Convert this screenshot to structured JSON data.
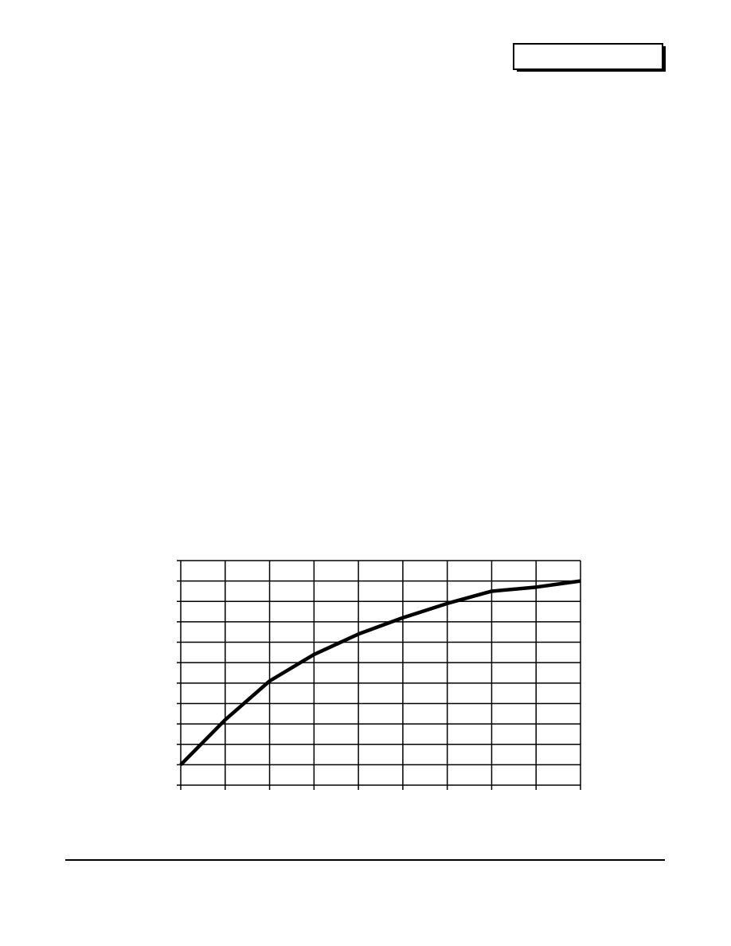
{
  "chart_data": {
    "type": "line",
    "x": [
      0,
      1,
      2,
      3,
      4,
      5,
      6,
      7,
      8,
      9
    ],
    "series": [
      {
        "color": "#000000",
        "values": [
          1,
          3.2,
          5.1,
          6.4,
          7.4,
          8.2,
          8.9,
          9.5,
          9.7,
          10
        ]
      }
    ],
    "xlim": [
      0,
      9
    ],
    "ylim": [
      0,
      11
    ],
    "xticks": [
      0,
      1,
      2,
      3,
      4,
      5,
      6,
      7,
      8,
      9
    ],
    "yticks": [
      0,
      1,
      2,
      3,
      4,
      5,
      6,
      7,
      8,
      9,
      10,
      11
    ],
    "grid": true
  }
}
